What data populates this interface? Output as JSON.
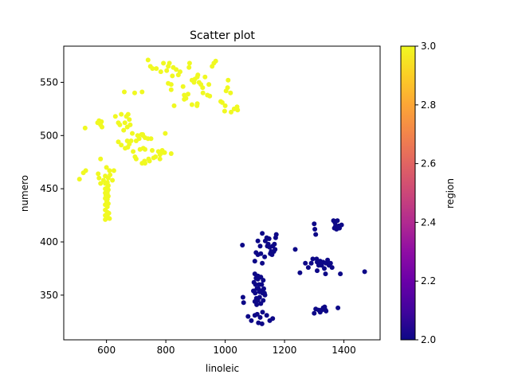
{
  "chart_data": {
    "type": "scatter",
    "title": "Scatter plot",
    "xlabel": "linoleic",
    "ylabel": "numero",
    "xlim": [
      456,
      1522
    ],
    "ylim": [
      308,
      584
    ],
    "xticks": [
      600,
      800,
      1000,
      1200,
      1400
    ],
    "yticks": [
      350,
      400,
      450,
      500,
      550
    ],
    "grid": false,
    "colorbar": {
      "label": "region",
      "min": 2.0,
      "max": 3.0,
      "ticks": [
        "2.0",
        "2.2",
        "2.4",
        "2.6",
        "2.8",
        "3.0"
      ],
      "colormap": "plasma"
    },
    "series": [
      {
        "region": 3,
        "color": "#f0f921",
        "points": [
          [
            509,
            459
          ],
          [
            522,
            465
          ],
          [
            530,
            467
          ],
          [
            528,
            507
          ],
          [
            570,
            512
          ],
          [
            575,
            514
          ],
          [
            580,
            510
          ],
          [
            585,
            508
          ],
          [
            583,
            513
          ],
          [
            572,
            464
          ],
          [
            575,
            460
          ],
          [
            580,
            455
          ],
          [
            580,
            478
          ],
          [
            590,
            458
          ],
          [
            600,
            470
          ],
          [
            610,
            467
          ],
          [
            612,
            463
          ],
          [
            596,
            462
          ],
          [
            596,
            455
          ],
          [
            596,
            450
          ],
          [
            596,
            446
          ],
          [
            596,
            441
          ],
          [
            596,
            435
          ],
          [
            596,
            430
          ],
          [
            596,
            425
          ],
          [
            596,
            421
          ],
          [
            603,
            456
          ],
          [
            603,
            451
          ],
          [
            603,
            446
          ],
          [
            603,
            440
          ],
          [
            603,
            433
          ],
          [
            603,
            428
          ],
          [
            603,
            424
          ],
          [
            606,
            460
          ],
          [
            606,
            453
          ],
          [
            606,
            449
          ],
          [
            606,
            443
          ],
          [
            606,
            436
          ],
          [
            608,
            427
          ],
          [
            610,
            422
          ],
          [
            598,
            444
          ],
          [
            601,
            438
          ],
          [
            620,
            458
          ],
          [
            625,
            467
          ],
          [
            630,
            518
          ],
          [
            640,
            512
          ],
          [
            650,
            520
          ],
          [
            658,
            505
          ],
          [
            662,
            512
          ],
          [
            667,
            518
          ],
          [
            673,
            520
          ],
          [
            677,
            515
          ],
          [
            680,
            510
          ],
          [
            670,
            508
          ],
          [
            645,
            510
          ],
          [
            640,
            494
          ],
          [
            650,
            491
          ],
          [
            670,
            495
          ],
          [
            677,
            492
          ],
          [
            683,
            495
          ],
          [
            687,
            502
          ],
          [
            672,
            489
          ],
          [
            690,
            485
          ],
          [
            696,
            480
          ],
          [
            700,
            495
          ],
          [
            705,
            500
          ],
          [
            710,
            497
          ],
          [
            718,
            501
          ],
          [
            723,
            500
          ],
          [
            730,
            498
          ],
          [
            740,
            497
          ],
          [
            750,
            497
          ],
          [
            724,
            488
          ],
          [
            713,
            487
          ],
          [
            730,
            487
          ],
          [
            745,
            476
          ],
          [
            759,
            479
          ],
          [
            765,
            480
          ],
          [
            775,
            485
          ],
          [
            780,
            482
          ],
          [
            788,
            486
          ],
          [
            796,
            484
          ],
          [
            780,
            478
          ],
          [
            790,
            484
          ],
          [
            754,
            486
          ],
          [
            742,
            478
          ],
          [
            730,
            474
          ],
          [
            720,
            474
          ],
          [
            722,
            501
          ],
          [
            728,
            476
          ],
          [
            663,
            488
          ],
          [
            700,
            478
          ],
          [
            818,
            483
          ],
          [
            798,
            502
          ],
          [
            695,
            540
          ],
          [
            660,
            541
          ],
          [
            720,
            541
          ],
          [
            740,
            571
          ],
          [
            748,
            565
          ],
          [
            755,
            563
          ],
          [
            768,
            563
          ],
          [
            783,
            560
          ],
          [
            792,
            568
          ],
          [
            803,
            561
          ],
          [
            808,
            565
          ],
          [
            812,
            568
          ],
          [
            808,
            549
          ],
          [
            818,
            548
          ],
          [
            822,
            556
          ],
          [
            825,
            564
          ],
          [
            835,
            562
          ],
          [
            842,
            557
          ],
          [
            848,
            560
          ],
          [
            858,
            546
          ],
          [
            862,
            534
          ],
          [
            880,
            568
          ],
          [
            878,
            564
          ],
          [
            888,
            552
          ],
          [
            895,
            550
          ],
          [
            898,
            553
          ],
          [
            906,
            555
          ],
          [
            908,
            557
          ],
          [
            912,
            550
          ],
          [
            918,
            548
          ],
          [
            924,
            545
          ],
          [
            932,
            555
          ],
          [
            945,
            548
          ],
          [
            948,
            537
          ],
          [
            956,
            565
          ],
          [
            962,
            568
          ],
          [
            968,
            570
          ],
          [
            868,
            535
          ],
          [
            888,
            529
          ],
          [
            905,
            528
          ],
          [
            925,
            540
          ],
          [
            940,
            538
          ],
          [
            985,
            532
          ],
          [
            990,
            531
          ],
          [
            1000,
            528
          ],
          [
            1003,
            542
          ],
          [
            1008,
            545
          ],
          [
            1010,
            552
          ],
          [
            1018,
            540
          ],
          [
            1020,
            522
          ],
          [
            1030,
            525
          ],
          [
            1040,
            527
          ],
          [
            1042,
            524
          ],
          [
            875,
            539
          ],
          [
            862,
            538
          ],
          [
            828,
            528
          ],
          [
            818,
            543
          ],
          [
            906,
            530
          ],
          [
            998,
            523
          ]
        ]
      },
      {
        "region": 2,
        "color": "#0d0887",
        "points": [
          [
            1058,
            397
          ],
          [
            1060,
            348
          ],
          [
            1062,
            343
          ],
          [
            1077,
            330
          ],
          [
            1088,
            326
          ],
          [
            1095,
            354
          ],
          [
            1097,
            362
          ],
          [
            1100,
            370
          ],
          [
            1100,
            382
          ],
          [
            1100,
            344
          ],
          [
            1101,
            352
          ],
          [
            1102,
            360
          ],
          [
            1104,
            366
          ],
          [
            1105,
            347
          ],
          [
            1106,
            341
          ],
          [
            1107,
            356
          ],
          [
            1110,
            368
          ],
          [
            1110,
            345
          ],
          [
            1110,
            365
          ],
          [
            1110,
            401
          ],
          [
            1110,
            388
          ],
          [
            1112,
            356
          ],
          [
            1114,
            360
          ],
          [
            1116,
            348
          ],
          [
            1116,
            353
          ],
          [
            1118,
            396
          ],
          [
            1120,
            367
          ],
          [
            1120,
            342
          ],
          [
            1120,
            389
          ],
          [
            1122,
            354
          ],
          [
            1123,
            360
          ],
          [
            1125,
            408
          ],
          [
            1125,
            380
          ],
          [
            1126,
            352
          ],
          [
            1128,
            364
          ],
          [
            1128,
            345
          ],
          [
            1130,
            356
          ],
          [
            1132,
            352
          ],
          [
            1133,
            386
          ],
          [
            1134,
            350
          ],
          [
            1135,
            401
          ],
          [
            1140,
            404
          ],
          [
            1142,
            396
          ],
          [
            1145,
            398
          ],
          [
            1148,
            403
          ],
          [
            1150,
            395
          ],
          [
            1152,
            389
          ],
          [
            1155,
            391
          ],
          [
            1158,
            388
          ],
          [
            1160,
            396
          ],
          [
            1164,
            391
          ],
          [
            1166,
            398
          ],
          [
            1168,
            393
          ],
          [
            1170,
            404
          ],
          [
            1172,
            407
          ],
          [
            1104,
            390
          ],
          [
            1100,
            331
          ],
          [
            1108,
            332
          ],
          [
            1112,
            324
          ],
          [
            1118,
            329
          ],
          [
            1124,
            323
          ],
          [
            1126,
            334
          ],
          [
            1140,
            331
          ],
          [
            1150,
            326
          ],
          [
            1160,
            328
          ],
          [
            1236,
            393
          ],
          [
            1252,
            371
          ],
          [
            1270,
            380
          ],
          [
            1280,
            376
          ],
          [
            1290,
            380
          ],
          [
            1295,
            384
          ],
          [
            1300,
            417
          ],
          [
            1302,
            412
          ],
          [
            1305,
            407
          ],
          [
            1308,
            384
          ],
          [
            1310,
            381
          ],
          [
            1310,
            373
          ],
          [
            1315,
            378
          ],
          [
            1320,
            382
          ],
          [
            1325,
            378
          ],
          [
            1330,
            381
          ],
          [
            1334,
            375
          ],
          [
            1338,
            370
          ],
          [
            1340,
            380
          ],
          [
            1345,
            383
          ],
          [
            1350,
            378
          ],
          [
            1355,
            380
          ],
          [
            1360,
            376
          ],
          [
            1365,
            420
          ],
          [
            1368,
            413
          ],
          [
            1370,
            418
          ],
          [
            1372,
            415
          ],
          [
            1375,
            412
          ],
          [
            1378,
            420
          ],
          [
            1380,
            414
          ],
          [
            1382,
            415
          ],
          [
            1385,
            413
          ],
          [
            1388,
            370
          ],
          [
            1392,
            416
          ],
          [
            1305,
            337
          ],
          [
            1315,
            336
          ],
          [
            1320,
            334
          ],
          [
            1325,
            336
          ],
          [
            1330,
            338
          ],
          [
            1335,
            339
          ],
          [
            1338,
            336
          ],
          [
            1340,
            335
          ],
          [
            1380,
            338
          ],
          [
            1470,
            372
          ],
          [
            1300,
            333
          ]
        ]
      }
    ]
  }
}
